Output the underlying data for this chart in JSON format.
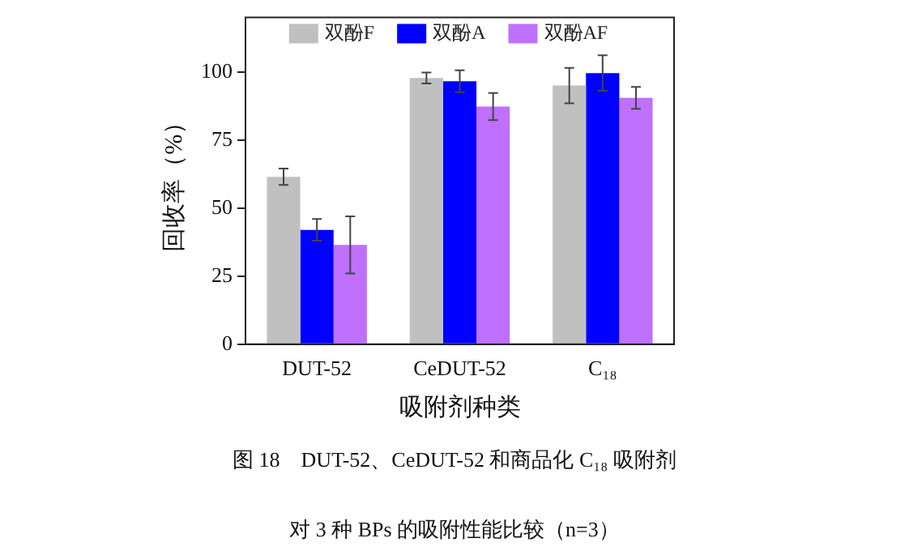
{
  "chart_data": {
    "type": "bar",
    "xlabel": "吸附剂种类",
    "ylabel": "回收率（%）",
    "categories": [
      "DUT-52",
      "CeDUT-52",
      "C₁₈"
    ],
    "series": [
      {
        "name": "双酚F",
        "color": "#c0c0c0",
        "values": [
          61.5,
          97.8,
          95
        ],
        "errors": [
          3,
          2,
          6.5
        ]
      },
      {
        "name": "双酚A",
        "color": "#0000ff",
        "values": [
          42,
          96.6,
          99.6
        ],
        "errors": [
          4,
          4,
          6.5
        ]
      },
      {
        "name": "双酚AF",
        "color": "#bf70ff",
        "values": [
          36.5,
          87.3,
          90.5
        ],
        "errors": [
          10.5,
          5,
          4
        ]
      }
    ],
    "ylim": [
      0,
      120
    ],
    "yticks": [
      0,
      25,
      50,
      75,
      100
    ],
    "grid": false,
    "legend": "top",
    "annotations": [
      "图 18　DUT-52、CeDUT-52 和商品化 C₁₈ 吸附剂",
      "对 3 种 BPs 的吸附性能比较（n=3）"
    ]
  }
}
